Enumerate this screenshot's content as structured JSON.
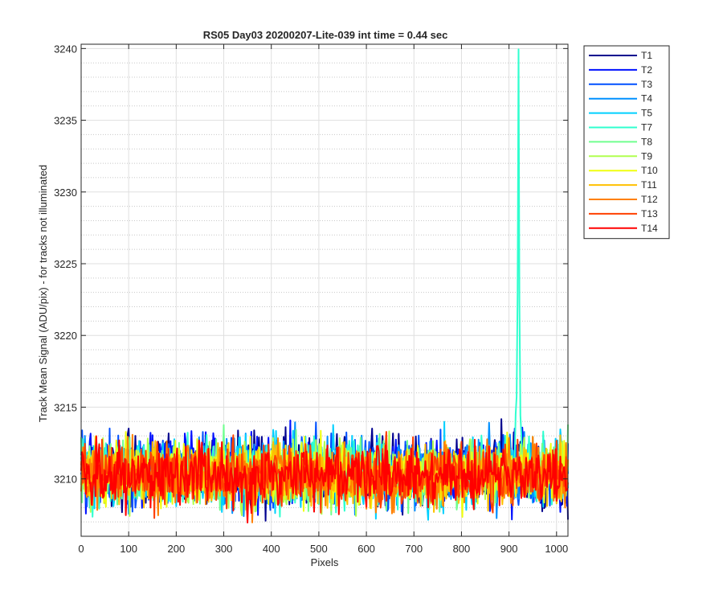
{
  "chart_data": {
    "type": "line",
    "title": "RS05 Day03 20200207-Lite-039 int time = 0.44 sec",
    "xlabel": "Pixels",
    "ylabel": "Track Mean Signal (ADU/pix) - for tracks not illuminated",
    "xlim": [
      0,
      1024
    ],
    "ylim": [
      3206,
      3240.3
    ],
    "xticks": [
      0,
      100,
      200,
      300,
      400,
      500,
      600,
      700,
      800,
      900,
      1000
    ],
    "yticks": [
      3210,
      3215,
      3220,
      3225,
      3230,
      3235,
      3240
    ],
    "grid": true,
    "minor_grid": true,
    "legend_position": "outside-top-right",
    "noise_baseline": 3210.2,
    "noise_range": [
      3206.2,
      3214.2
    ],
    "series": [
      {
        "name": "T1",
        "color": "#00008F",
        "peak": null
      },
      {
        "name": "T2",
        "color": "#0010FF",
        "peak": null
      },
      {
        "name": "T3",
        "color": "#0050FF",
        "peak": null
      },
      {
        "name": "T4",
        "color": "#0090FF",
        "peak": null
      },
      {
        "name": "T5",
        "color": "#00D0FF",
        "peak": null
      },
      {
        "name": "T7",
        "color": "#30FFCF",
        "peak": {
          "x": 920,
          "y": 3240.3
        }
      },
      {
        "name": "T8",
        "color": "#70FF8F",
        "peak": null
      },
      {
        "name": "T9",
        "color": "#B0FF50",
        "peak": null
      },
      {
        "name": "T10",
        "color": "#F0FF10",
        "peak": null
      },
      {
        "name": "T11",
        "color": "#FFC000",
        "peak": null
      },
      {
        "name": "T12",
        "color": "#FF8000",
        "peak": null
      },
      {
        "name": "T13",
        "color": "#FF4000",
        "peak": null
      },
      {
        "name": "T14",
        "color": "#FF0000",
        "peak": null
      }
    ]
  }
}
